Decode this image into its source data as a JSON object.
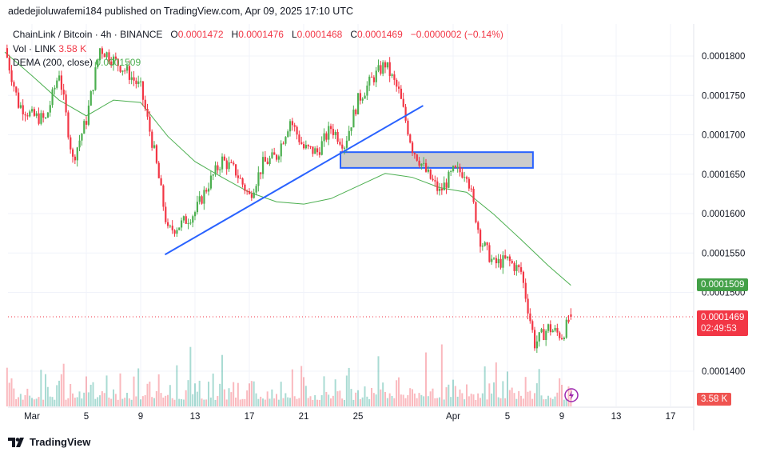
{
  "publisher_line": "adedejioluwafemi184 published on TradingView.com, Apr 09, 2025 17:10 UTC",
  "legend": {
    "symbol": "ChainLink / Bitcoin · 4h · BINANCE",
    "open_label": "O",
    "open": "0.0001472",
    "high_label": "H",
    "high": "0.0001476",
    "low_label": "L",
    "low": "0.0001468",
    "close_label": "C",
    "close": "0.0001469",
    "change": "−0.0000002 (−0.14%)",
    "vol_label": "Vol · LINK",
    "vol_value": "3.58 K",
    "dema_label": "DEMA (200, close)",
    "dema_value": "0.0001509"
  },
  "price_labels": {
    "dema": "0.0001509",
    "last": "0.0001469",
    "countdown": "02:49:53",
    "volume": "3.58 K"
  },
  "footer": {
    "brand": "TradingView"
  },
  "colors": {
    "up": "#089981",
    "up_candle": "#4caf50",
    "down": "#f23645",
    "dema": "#4caf50",
    "trendline": "#2962ff",
    "zone_fill": "#cccccc"
  },
  "chart_data": {
    "type": "candlestick",
    "timeframe": "4h",
    "y_ticks": [
      "0.0001800",
      "0.0001750",
      "0.0001700",
      "0.0001650",
      "0.0001600",
      "0.0001550",
      "0.0001500",
      "0.0001400"
    ],
    "y_tick_values": [
      0.00018,
      0.000175,
      0.00017,
      0.000165,
      0.00016,
      0.000155,
      0.00015,
      0.00014
    ],
    "x_ticks": [
      "Mar",
      "5",
      "9",
      "13",
      "17",
      "21",
      "25",
      "Apr",
      "5",
      "9",
      "13",
      "17"
    ],
    "x_tick_dates": [
      "2025-03-01",
      "2025-03-05",
      "2025-03-09",
      "2025-03-13",
      "2025-03-17",
      "2025-03-21",
      "2025-03-25",
      "2025-04-01",
      "2025-04-05",
      "2025-04-09",
      "2025-04-13",
      "2025-04-17"
    ],
    "approx_daily_closes": [
      [
        "2025-02-27T00:00",
        0.000181
      ],
      [
        "2025-02-28T00:00",
        0.0001739
      ],
      [
        "2025-03-01T00:00",
        0.0001724
      ],
      [
        "2025-03-02T00:00",
        0.0001719
      ],
      [
        "2025-03-03T00:00",
        0.000178
      ],
      [
        "2025-03-04T00:00",
        0.0001668
      ],
      [
        "2025-03-05T00:00",
        0.0001719
      ],
      [
        "2025-03-06T00:00",
        0.000181
      ],
      [
        "2025-03-07T00:00",
        0.0001795
      ],
      [
        "2025-03-08T00:00",
        0.000178
      ],
      [
        "2025-03-09T00:00",
        0.0001759
      ],
      [
        "2025-03-10T00:00",
        0.0001678
      ],
      [
        "2025-03-11T00:00",
        0.0001577
      ],
      [
        "2025-03-12T00:00",
        0.0001587
      ],
      [
        "2025-03-13T00:00",
        0.0001602
      ],
      [
        "2025-03-14T00:00",
        0.0001638
      ],
      [
        "2025-03-15T00:00",
        0.0001668
      ],
      [
        "2025-03-16T00:00",
        0.0001653
      ],
      [
        "2025-03-17T00:00",
        0.0001622
      ],
      [
        "2025-03-18T00:00",
        0.0001663
      ],
      [
        "2025-03-19T00:00",
        0.0001673
      ],
      [
        "2025-03-20T00:00",
        0.0001719
      ],
      [
        "2025-03-21T00:00",
        0.0001683
      ],
      [
        "2025-03-22T00:00",
        0.0001678
      ],
      [
        "2025-03-23T00:00",
        0.0001709
      ],
      [
        "2025-03-24T00:00",
        0.0001688
      ],
      [
        "2025-03-25T00:00",
        0.0001744
      ],
      [
        "2025-03-26T00:00",
        0.000177
      ],
      [
        "2025-03-27T00:00",
        0.000179
      ],
      [
        "2025-03-28T00:00",
        0.0001754
      ],
      [
        "2025-03-29T00:00",
        0.0001683
      ],
      [
        "2025-03-30T00:00",
        0.0001653
      ],
      [
        "2025-03-31T00:00",
        0.0001627
      ],
      [
        "2025-04-01T00:00",
        0.0001653
      ],
      [
        "2025-04-02T00:00",
        0.0001653
      ],
      [
        "2025-04-03T00:00",
        0.0001567
      ],
      [
        "2025-04-04T00:00",
        0.0001536
      ],
      [
        "2025-04-05T00:00",
        0.0001541
      ],
      [
        "2025-04-06T00:00",
        0.0001526
      ],
      [
        "2025-04-07T00:00",
        0.0001435
      ],
      [
        "2025-04-08T00:00",
        0.0001455
      ],
      [
        "2025-04-09T00:00",
        0.0001445
      ],
      [
        "2025-04-09T16:00",
        0.0001469
      ]
    ],
    "dema_200": [
      [
        "2025-02-27T00:00",
        0.0001805
      ],
      [
        "2025-03-01T00:00",
        0.0001775
      ],
      [
        "2025-03-03T00:00",
        0.0001744
      ],
      [
        "2025-03-05T00:00",
        0.0001724
      ],
      [
        "2025-03-07T00:00",
        0.0001744
      ],
      [
        "2025-03-09T00:00",
        0.0001741
      ],
      [
        "2025-03-11T00:00",
        0.0001698
      ],
      [
        "2025-03-13T00:00",
        0.0001666
      ],
      [
        "2025-03-15T00:00",
        0.0001646
      ],
      [
        "2025-03-17T00:00",
        0.0001627
      ],
      [
        "2025-03-19T00:00",
        0.0001615
      ],
      [
        "2025-03-21T00:00",
        0.0001612
      ],
      [
        "2025-03-23T00:00",
        0.0001619
      ],
      [
        "2025-03-25T00:00",
        0.0001635
      ],
      [
        "2025-03-27T00:00",
        0.0001651
      ],
      [
        "2025-03-29T00:00",
        0.0001646
      ],
      [
        "2025-03-31T00:00",
        0.0001633
      ],
      [
        "2025-04-02T00:00",
        0.0001627
      ],
      [
        "2025-04-04T00:00",
        0.0001599
      ],
      [
        "2025-04-06T00:00",
        0.0001567
      ],
      [
        "2025-04-08T00:00",
        0.0001534
      ],
      [
        "2025-04-09T16:00",
        0.0001509
      ]
    ],
    "trendline": {
      "from": [
        "2025-03-10T19:00",
        0.0001548
      ],
      "to": [
        "2025-03-29T19:00",
        0.0001737
      ]
    },
    "zone_rectangle": {
      "from": [
        "2025-03-23T17:00",
        0.0001678
      ],
      "to": [
        "2025-04-06T21:00",
        0.0001658
      ]
    },
    "last_price_line": 0.0001469
  }
}
